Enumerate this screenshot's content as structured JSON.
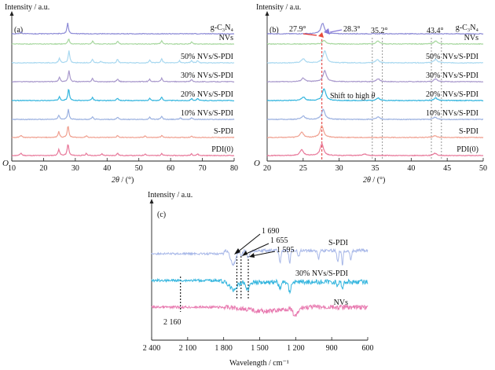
{
  "chart_data": [
    {
      "type": "line",
      "panel_label": "(a)",
      "ylabel": "Intensity / a.u.",
      "xlabel_italic": "2θ",
      "xlabel_unit": " / (°)",
      "origin_label": "O",
      "xlim": [
        10,
        80
      ],
      "xticks": [
        10,
        20,
        30,
        40,
        50,
        60,
        70,
        80
      ],
      "series": [
        {
          "name": "PDI(0)",
          "color": "#e8789a",
          "peaks": [
            [
              12.9,
              0.22
            ],
            [
              24.8,
              0.55
            ],
            [
              27.7,
              1.0
            ],
            [
              33.5,
              0.18
            ],
            [
              38.4,
              0.15
            ],
            [
              43.3,
              0.2
            ],
            [
              52.0,
              0.15
            ],
            [
              57.2,
              0.18
            ],
            [
              66.6,
              0.16
            ],
            [
              68.5,
              0.14
            ]
          ]
        },
        {
          "name": "S-PDI",
          "color": "#f0a090",
          "peaks": [
            [
              12.9,
              0.2
            ],
            [
              24.8,
              0.5
            ],
            [
              27.7,
              1.0
            ],
            [
              33.5,
              0.16
            ],
            [
              43.3,
              0.18
            ],
            [
              52.0,
              0.14
            ],
            [
              57.2,
              0.18
            ],
            [
              66.6,
              0.14
            ]
          ]
        },
        {
          "name": "10% NVs/S-PDI",
          "color": "#9ab0e0",
          "peaks": [
            [
              24.8,
              0.35
            ],
            [
              27.8,
              0.85
            ],
            [
              35.4,
              0.22
            ],
            [
              43.3,
              0.2
            ],
            [
              53.4,
              0.18
            ],
            [
              57.2,
              0.26
            ],
            [
              63.0,
              0.15
            ],
            [
              66.6,
              0.15
            ]
          ]
        },
        {
          "name": "20% NVs/S-PDI",
          "color": "#33b5de",
          "peaks": [
            [
              25.0,
              0.35
            ],
            [
              27.9,
              1.0
            ],
            [
              35.4,
              0.25
            ],
            [
              43.3,
              0.22
            ],
            [
              53.4,
              0.2
            ],
            [
              57.2,
              0.3
            ],
            [
              66.6,
              0.18
            ],
            [
              68.5,
              0.16
            ]
          ]
        },
        {
          "name": "30% NVs/S-PDI",
          "color": "#a898cc",
          "peaks": [
            [
              25.0,
              0.35
            ],
            [
              28.0,
              0.95
            ],
            [
              35.4,
              0.28
            ],
            [
              43.3,
              0.25
            ],
            [
              53.4,
              0.2
            ],
            [
              57.2,
              0.3
            ],
            [
              66.6,
              0.18
            ]
          ]
        },
        {
          "name": "50% NVs/S-PDI",
          "color": "#a8d8f0",
          "peaks": [
            [
              25.0,
              0.4
            ],
            [
              28.0,
              1.05
            ],
            [
              35.4,
              0.3
            ],
            [
              38.0,
              0.15
            ],
            [
              43.3,
              0.3
            ],
            [
              53.4,
              0.22
            ],
            [
              57.2,
              0.35
            ],
            [
              62.8,
              0.18
            ],
            [
              66.6,
              0.2
            ],
            [
              68.5,
              0.18
            ]
          ]
        },
        {
          "name": "NVs",
          "color": "#a8d8a0",
          "peaks": [
            [
              27.9,
              0.45
            ],
            [
              35.5,
              0.25
            ],
            [
              43.3,
              0.25
            ],
            [
              57.2,
              0.3
            ],
            [
              66.6,
              0.18
            ]
          ]
        },
        {
          "name": "g-C₃N₄",
          "color": "#8c8ad6",
          "peaks": [
            [
              13.0,
              0.15
            ],
            [
              27.6,
              0.9
            ]
          ]
        }
      ]
    },
    {
      "type": "line",
      "panel_label": "(b)",
      "ylabel": "Intensity / a.u.",
      "xlabel_italic": "2θ",
      "xlabel_unit": " / (°)",
      "origin_label": "O",
      "xlim": [
        20,
        50
      ],
      "xticks": [
        20,
        25,
        30,
        35,
        40,
        45,
        50
      ],
      "series": [
        {
          "name": "PDI(0)",
          "color": "#e8789a",
          "peaks": [
            [
              24.8,
              0.5
            ],
            [
              27.6,
              1.0
            ],
            [
              33.5,
              0.15
            ],
            [
              43.3,
              0.18
            ]
          ]
        },
        {
          "name": "S-PDI",
          "color": "#f0a090",
          "peaks": [
            [
              24.8,
              0.45
            ],
            [
              27.6,
              1.0
            ],
            [
              43.3,
              0.15
            ]
          ]
        },
        {
          "name": "10% NVs/S-PDI",
          "color": "#9ab0e0",
          "peaks": [
            [
              25.0,
              0.3
            ],
            [
              27.8,
              0.85
            ],
            [
              35.4,
              0.2
            ],
            [
              43.3,
              0.18
            ]
          ]
        },
        {
          "name": "20% NVs/S-PDI",
          "color": "#33b5de",
          "peaks": [
            [
              25.0,
              0.3
            ],
            [
              27.9,
              1.0
            ],
            [
              35.4,
              0.22
            ],
            [
              43.4,
              0.22
            ]
          ]
        },
        {
          "name": "30% NVs/S-PDI",
          "color": "#a898cc",
          "peaks": [
            [
              25.0,
              0.3
            ],
            [
              28.0,
              0.95
            ],
            [
              35.4,
              0.25
            ],
            [
              43.4,
              0.25
            ]
          ]
        },
        {
          "name": "50% NVs/S-PDI",
          "color": "#a8d8f0",
          "peaks": [
            [
              25.0,
              0.35
            ],
            [
              28.0,
              1.05
            ],
            [
              35.3,
              0.28
            ],
            [
              43.4,
              0.3
            ]
          ]
        },
        {
          "name": "NVs",
          "color": "#a8d8a0",
          "peaks": [
            [
              27.9,
              0.3
            ],
            [
              35.4,
              0.25
            ],
            [
              43.4,
              0.25
            ]
          ]
        },
        {
          "name": "g-C₃N₄",
          "color": "#8c8ad6",
          "peaks": [
            [
              27.7,
              0.9
            ]
          ]
        }
      ],
      "annotations": {
        "peak_left": "27.9°",
        "peak_right": "28.3°",
        "marker_35": "35.2°",
        "marker_43": "43.4°",
        "shift_text": "Shift to high ",
        "shift_symbol": "θ"
      },
      "guide_lines": [
        34.6,
        36.0,
        42.8,
        44.2
      ],
      "red_guide": 27.6
    },
    {
      "type": "line",
      "panel_label": "(c)",
      "ylabel": "Intensity / a.u.",
      "xlabel": "Wavelength / cm⁻¹",
      "xlim": [
        2400,
        600
      ],
      "xticks": [
        2400,
        2100,
        1800,
        1500,
        1200,
        900,
        600
      ],
      "xtick_labels": [
        "2 400",
        "2 100",
        "1 800",
        "1 500",
        "1 200",
        "900",
        "600"
      ],
      "series": [
        {
          "name": "NVs",
          "color": "#e87ab0"
        },
        {
          "name": "30% NVs/S-PDI",
          "color": "#33b5de"
        },
        {
          "name": "S-PDI",
          "color": "#a8b8e8"
        }
      ],
      "annotations": {
        "band_1690": "1 690",
        "band_1655": "1 655",
        "band_1595": "1 595",
        "band_2160": "2 160"
      },
      "band_positions": [
        1690,
        1655,
        1595,
        2160
      ]
    }
  ]
}
